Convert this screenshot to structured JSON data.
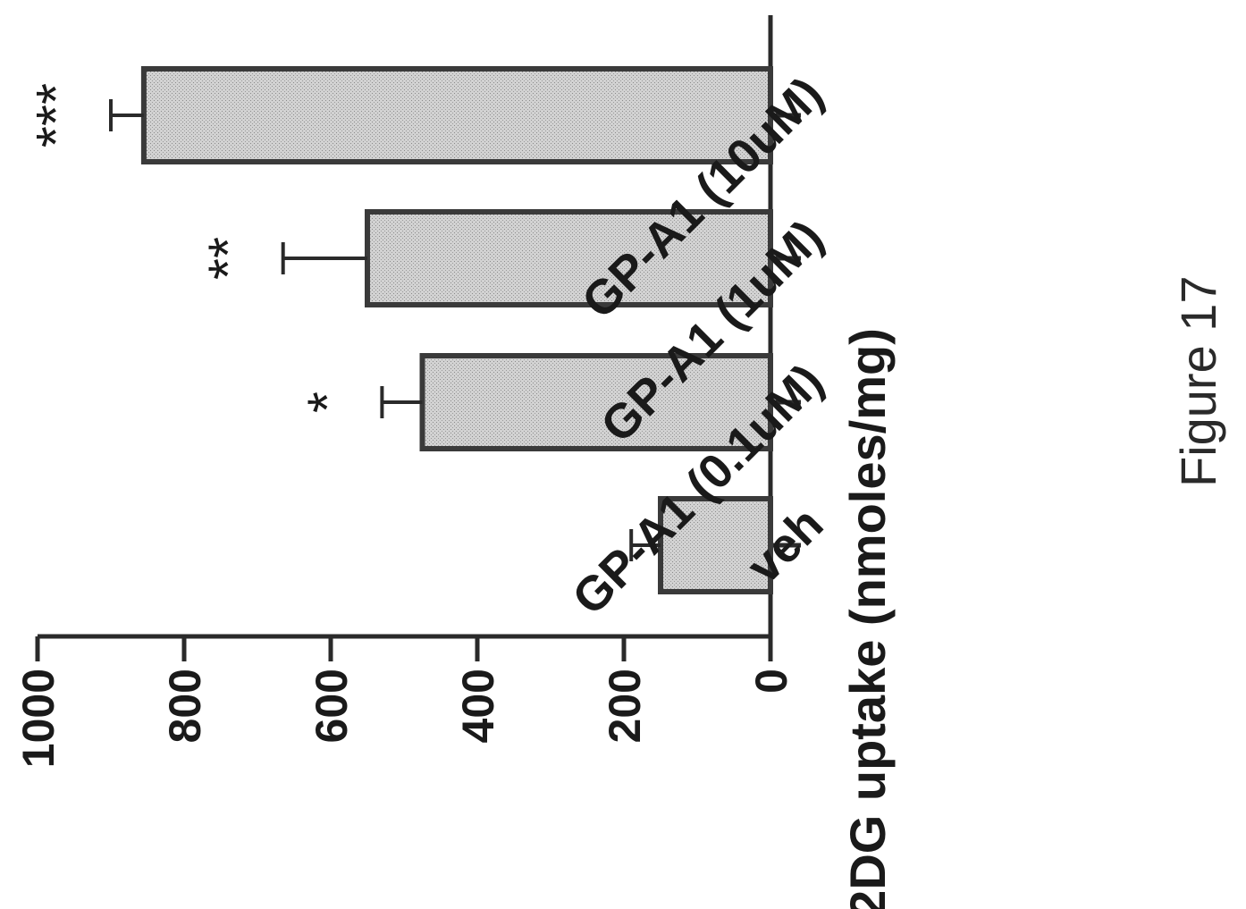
{
  "chart_data": {
    "type": "bar",
    "categories": [
      "veh",
      "GP-A1 (0.1uM)",
      "GP-A1 (1uM)",
      "GP-A1 (10uM)"
    ],
    "values": [
      150,
      475,
      550,
      855
    ],
    "errors": [
      40,
      55,
      115,
      45
    ],
    "significance": [
      "",
      "*",
      "**",
      "***"
    ],
    "ylabel": "2DG uptake (nmoles/mg)",
    "ylim": [
      0,
      1000
    ],
    "yticks": [
      "0",
      "200",
      "400",
      "600",
      "800",
      "1000"
    ],
    "tick_values": [
      0,
      200,
      400,
      600,
      800,
      1000
    ],
    "grid": false
  },
  "caption": "Figure 17",
  "colors": {
    "bar_fill": "#c8c8c8",
    "bar_stroke": "#3a3a3a",
    "axis": "#2a2a2a"
  }
}
